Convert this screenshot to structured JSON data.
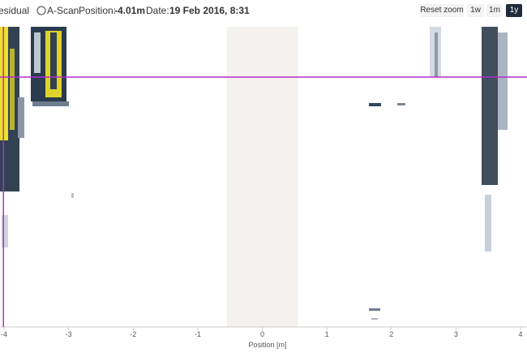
{
  "toolbar": {
    "residual_label": "esidual",
    "ascan_label": "A-Scan",
    "position_label": "Position:",
    "position_value": "-4.01m",
    "date_label": "Date:",
    "date_value": "19 Feb 2016, 8:31",
    "buttons": [
      "Reset zoom",
      "1w",
      "1m",
      "1y"
    ]
  },
  "plot": {
    "xlabel": "Position [m]",
    "xlim": [
      -4.063,
      4.1
    ],
    "xticks": [
      -4,
      -3,
      -2,
      -1,
      0,
      1,
      2,
      3,
      4
    ],
    "cursor_x": -4.01,
    "shaded_band": [
      -0.55,
      0.55
    ]
  }
}
